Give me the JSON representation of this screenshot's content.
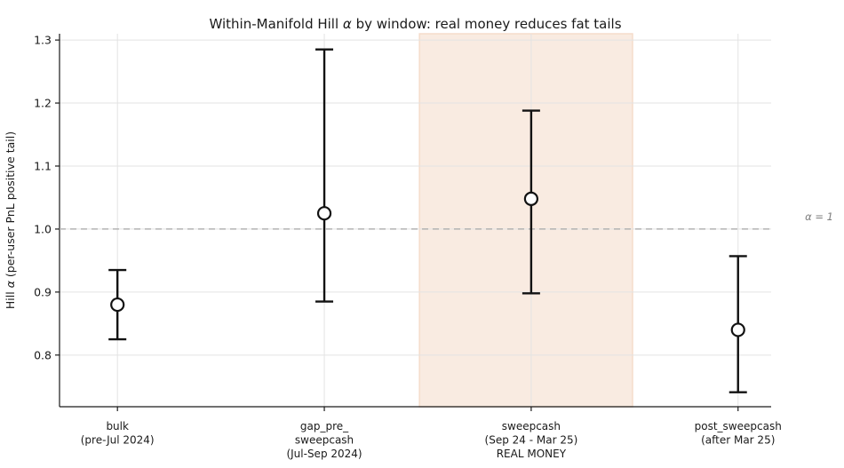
{
  "chart_data": {
    "type": "errorbar",
    "title": "Within-Manifold Hill α by window: real money reduces fat tails",
    "title_parts": [
      "Within-Manifold Hill ",
      "α",
      " by window: real money reduces fat tails"
    ],
    "ylabel": "Hill α (per-user PnL positive tail)",
    "ylabel_parts": [
      "Hill ",
      "α",
      " (per-user PnL positive tail)"
    ],
    "xlabel": "",
    "categories": [
      "bulk (pre-Jul 2024)",
      "gap_pre_ sweepcash (Jul-Sep 2024)",
      "sweepcash (Sep 24 - Mar 25) REAL MONEY",
      "post_sweepcash (after Mar 25)"
    ],
    "category_label_lines": [
      [
        "bulk",
        "(pre-Jul 2024)"
      ],
      [
        "gap_pre_",
        "sweepcash",
        "(Jul-Sep 2024)"
      ],
      [
        "sweepcash",
        "(Sep 24 - Mar 25)",
        "REAL MONEY"
      ],
      [
        "post_sweepcash",
        "(after Mar 25)"
      ]
    ],
    "x": [
      0,
      1,
      2,
      3
    ],
    "values": [
      0.88,
      1.025,
      1.048,
      0.84
    ],
    "ci_low": [
      0.825,
      0.885,
      0.898,
      0.741
    ],
    "ci_high": [
      0.935,
      1.285,
      1.188,
      0.957
    ],
    "yticks": [
      0.8,
      0.9,
      1.0,
      1.1,
      1.2,
      1.3
    ],
    "ylim": [
      0.718,
      1.31
    ],
    "xlim": [
      -0.28,
      3.16
    ],
    "grid": true,
    "legend": "none",
    "reference_line": {
      "value": 1.0,
      "label": "α = 1",
      "style": "dashed"
    },
    "highlight_span": {
      "x0": 1.46,
      "x1": 2.49,
      "category": "sweepcash (REAL MONEY)"
    },
    "colors": {
      "background": "#ffffff",
      "errorbar": "#121212",
      "marker_fill": "#ffffff",
      "grid": "#e3e3e3",
      "spine": "#1a1a1a",
      "reference_line": "#b3b3b3",
      "annotation": "#7d7d7d",
      "text": "#1a1a1a",
      "highlight_fill": "#f9ebe1",
      "highlight_edge": "#f5dccb"
    }
  }
}
